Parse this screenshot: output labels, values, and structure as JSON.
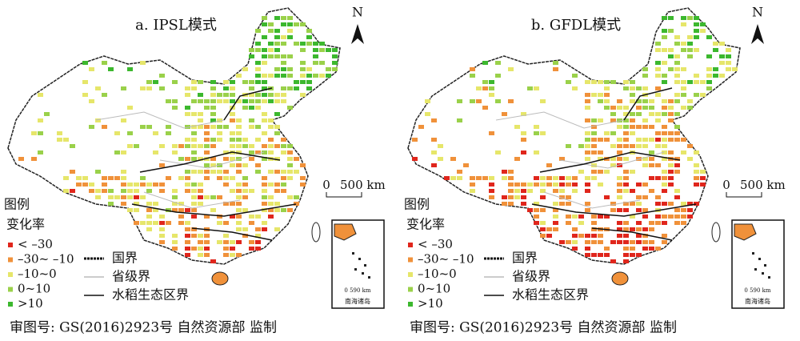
{
  "panels": [
    {
      "title": "a. IPSL模式",
      "north": "N",
      "scale": {
        "zero": "0",
        "label": "500 km"
      },
      "legend": {
        "title": "图例",
        "subtitle": "变化率",
        "classes": [
          {
            "label": "< –30",
            "color": "#e0261c"
          },
          {
            "label": "–30~ –10",
            "color": "#f0913a"
          },
          {
            "label": "–10~0",
            "color": "#e6e66a"
          },
          {
            "label": "0~10",
            "color": "#9ad14a"
          },
          {
            "label": ">10",
            "color": "#3cb82e"
          }
        ],
        "lines": [
          {
            "label": "国界"
          },
          {
            "label": "省级界"
          },
          {
            "label": "水稻生态区界"
          }
        ]
      },
      "inset": {
        "scale": "0 590 km",
        "label": "南海诸岛"
      },
      "approval": "审图号: GS(2016)2923号 自然资源部 监制"
    },
    {
      "title": "b. GFDL模式",
      "north": "N",
      "scale": {
        "zero": "0",
        "label": "500 km"
      },
      "legend": {
        "title": "图例",
        "subtitle": "变化率",
        "classes": [
          {
            "label": "< –30",
            "color": "#e0261c"
          },
          {
            "label": "–30~ –10",
            "color": "#f0913a"
          },
          {
            "label": "–10~0",
            "color": "#e6e66a"
          },
          {
            "label": "0~10",
            "color": "#9ad14a"
          },
          {
            "label": ">10",
            "color": "#3cb82e"
          }
        ],
        "lines": [
          {
            "label": "国界"
          },
          {
            "label": "省级界"
          },
          {
            "label": "水稻生态区界"
          }
        ]
      },
      "inset": {
        "scale": "0 590 km",
        "label": "南海诸岛"
      },
      "approval": "审图号: GS(2016)2923号 自然资源部 监制"
    }
  ]
}
